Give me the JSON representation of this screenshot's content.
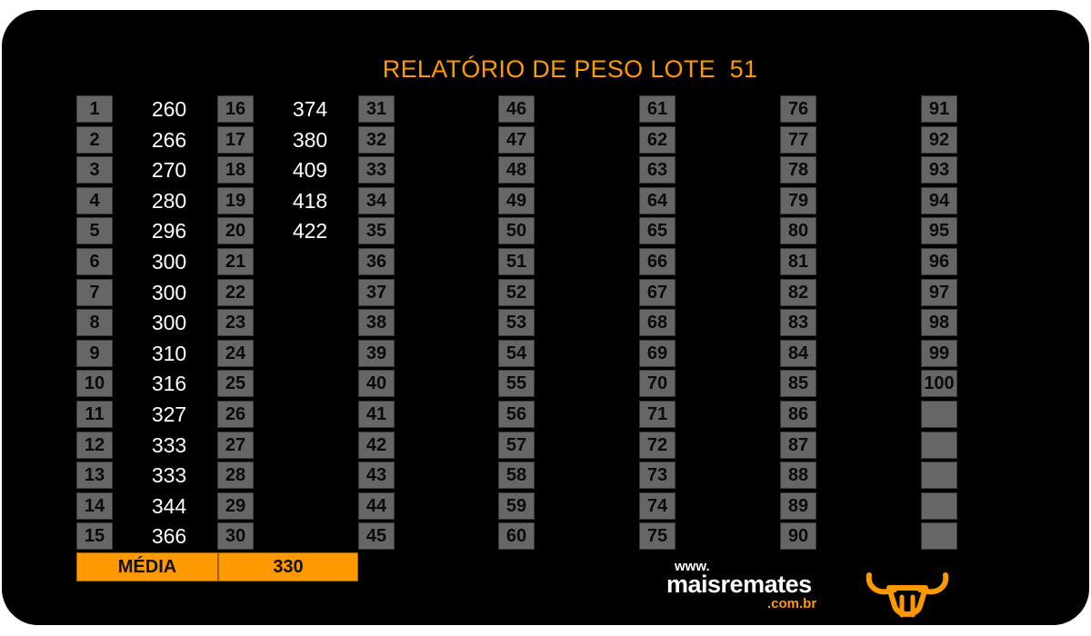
{
  "title": "RELATÓRIO DE PESO LOTE  51",
  "columns": [
    {
      "numbers": [
        "1",
        "2",
        "3",
        "4",
        "5",
        "6",
        "7",
        "8",
        "9",
        "10",
        "11",
        "12",
        "13",
        "14",
        "15"
      ],
      "weights": [
        "260",
        "266",
        "270",
        "280",
        "296",
        "300",
        "300",
        "300",
        "310",
        "316",
        "327",
        "333",
        "333",
        "344",
        "366"
      ]
    },
    {
      "numbers": [
        "16",
        "17",
        "18",
        "19",
        "20",
        "21",
        "22",
        "23",
        "24",
        "25",
        "26",
        "27",
        "28",
        "29",
        "30"
      ],
      "weights": [
        "374",
        "380",
        "409",
        "418",
        "422",
        "",
        "",
        "",
        "",
        "",
        "",
        "",
        "",
        "",
        ""
      ]
    },
    {
      "numbers": [
        "31",
        "32",
        "33",
        "34",
        "35",
        "36",
        "37",
        "38",
        "39",
        "40",
        "41",
        "42",
        "43",
        "44",
        "45"
      ],
      "weights": []
    },
    {
      "numbers": [
        "46",
        "47",
        "48",
        "49",
        "50",
        "51",
        "52",
        "53",
        "54",
        "55",
        "56",
        "57",
        "58",
        "59",
        "60"
      ],
      "weights": []
    },
    {
      "numbers": [
        "61",
        "62",
        "63",
        "64",
        "65",
        "66",
        "67",
        "68",
        "69",
        "70",
        "71",
        "72",
        "73",
        "74",
        "75"
      ],
      "weights": []
    },
    {
      "numbers": [
        "76",
        "77",
        "78",
        "79",
        "80",
        "81",
        "82",
        "83",
        "84",
        "85",
        "86",
        "87",
        "88",
        "89",
        "90"
      ],
      "weights": []
    },
    {
      "numbers": [
        "91",
        "92",
        "93",
        "94",
        "95",
        "96",
        "97",
        "98",
        "99",
        "100",
        "",
        "",
        "",
        "",
        ""
      ],
      "weights": []
    }
  ],
  "media": {
    "label": "MÉDIA",
    "value": "330"
  },
  "logo": {
    "www": "www.",
    "name": "maisremates",
    "domain": ".com.br",
    "icon": "bull-head-icon"
  },
  "colors": {
    "background": "#000000",
    "accent": "#ff9900",
    "cell": "#666666",
    "text": "#ffffff"
  }
}
